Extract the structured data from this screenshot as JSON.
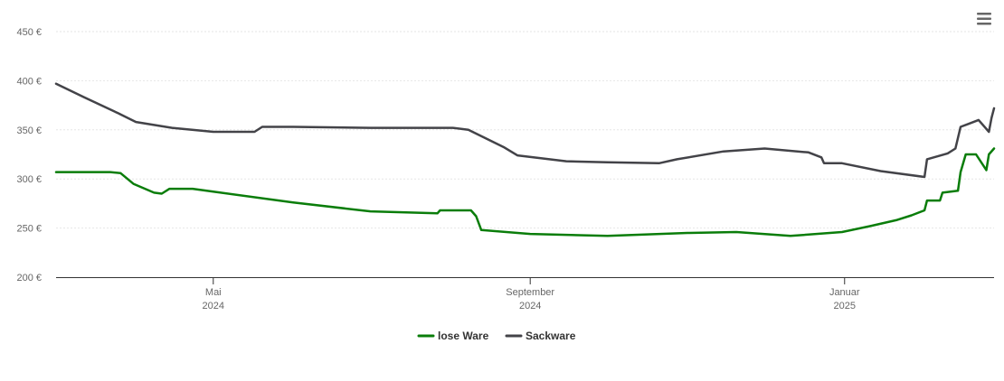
{
  "chart_data": {
    "type": "line",
    "title": "",
    "xlabel": "",
    "ylabel": "",
    "x_range": [
      "2024-03-01",
      "2025-02-28"
    ],
    "ylim": [
      200,
      450
    ],
    "y_ticks": [
      200,
      250,
      300,
      350,
      400,
      450
    ],
    "y_tick_labels": [
      "200 €",
      "250 €",
      "300 €",
      "350 €",
      "400 €",
      "450 €"
    ],
    "x_ticks": [
      {
        "date": "2024-05-01",
        "line1": "Mai",
        "line2": "2024"
      },
      {
        "date": "2024-09-01",
        "line1": "September",
        "line2": "2024"
      },
      {
        "date": "2025-01-01",
        "line1": "Januar",
        "line2": "2025"
      }
    ],
    "grid": true,
    "legend_position": "bottom-center",
    "series": [
      {
        "name": "lose Ware",
        "color": "#0a7d0a",
        "points": [
          [
            "2024-03-01",
            307
          ],
          [
            "2024-03-22",
            307
          ],
          [
            "2024-03-26",
            306
          ],
          [
            "2024-03-31",
            295
          ],
          [
            "2024-04-08",
            286
          ],
          [
            "2024-04-11",
            285
          ],
          [
            "2024-04-14",
            290
          ],
          [
            "2024-04-23",
            290
          ],
          [
            "2024-05-01",
            287
          ],
          [
            "2024-06-01",
            276
          ],
          [
            "2024-07-01",
            267
          ],
          [
            "2024-07-27",
            265
          ],
          [
            "2024-07-28",
            268
          ],
          [
            "2024-08-09",
            268
          ],
          [
            "2024-08-11",
            262
          ],
          [
            "2024-08-13",
            248
          ],
          [
            "2024-09-01",
            244
          ],
          [
            "2024-10-01",
            242
          ],
          [
            "2024-11-01",
            245
          ],
          [
            "2024-11-20",
            246
          ],
          [
            "2024-12-11",
            242
          ],
          [
            "2024-12-31",
            246
          ],
          [
            "2025-01-11",
            252
          ],
          [
            "2025-01-21",
            258
          ],
          [
            "2025-01-27",
            263
          ],
          [
            "2025-02-01",
            268
          ],
          [
            "2025-02-02",
            278
          ],
          [
            "2025-02-07",
            278
          ],
          [
            "2025-02-08",
            286
          ],
          [
            "2025-02-14",
            288
          ],
          [
            "2025-02-15",
            307
          ],
          [
            "2025-02-17",
            325
          ],
          [
            "2025-02-21",
            325
          ],
          [
            "2025-02-25",
            309
          ],
          [
            "2025-02-26",
            325
          ],
          [
            "2025-02-28",
            331
          ]
        ]
      },
      {
        "name": "Sackware",
        "color": "#434348",
        "points": [
          [
            "2024-03-01",
            397
          ],
          [
            "2024-03-12",
            383
          ],
          [
            "2024-03-25",
            367
          ],
          [
            "2024-04-01",
            358
          ],
          [
            "2024-04-15",
            352
          ],
          [
            "2024-05-01",
            348
          ],
          [
            "2024-05-15",
            348
          ],
          [
            "2024-05-17",
            348
          ],
          [
            "2024-05-20",
            353
          ],
          [
            "2024-06-01",
            353
          ],
          [
            "2024-07-01",
            352
          ],
          [
            "2024-08-02",
            352
          ],
          [
            "2024-08-08",
            350
          ],
          [
            "2024-08-22",
            332
          ],
          [
            "2024-08-27",
            324
          ],
          [
            "2024-09-15",
            318
          ],
          [
            "2024-10-01",
            317
          ],
          [
            "2024-10-21",
            316
          ],
          [
            "2024-10-28",
            320
          ],
          [
            "2024-11-15",
            328
          ],
          [
            "2024-12-01",
            331
          ],
          [
            "2024-12-18",
            327
          ],
          [
            "2024-12-23",
            322
          ],
          [
            "2024-12-24",
            316
          ],
          [
            "2024-12-31",
            316
          ],
          [
            "2025-01-15",
            308
          ],
          [
            "2025-02-01",
            302
          ],
          [
            "2025-02-02",
            320
          ],
          [
            "2025-02-06",
            323
          ],
          [
            "2025-02-10",
            326
          ],
          [
            "2025-02-13",
            331
          ],
          [
            "2025-02-15",
            353
          ],
          [
            "2025-02-18",
            356
          ],
          [
            "2025-02-22",
            360
          ],
          [
            "2025-02-26",
            348
          ],
          [
            "2025-02-27",
            362
          ],
          [
            "2025-02-28",
            372
          ]
        ]
      }
    ]
  }
}
